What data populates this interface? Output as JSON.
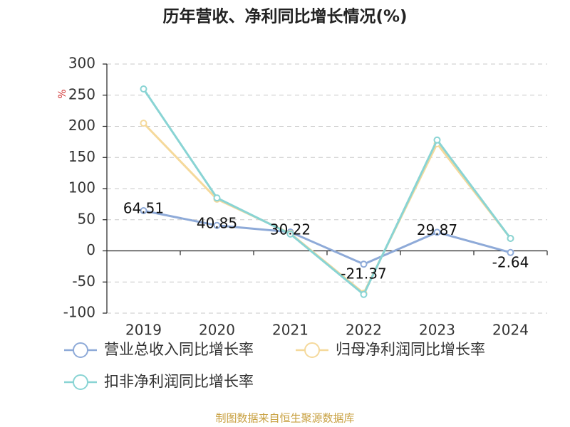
{
  "chart_data": {
    "type": "line",
    "title": "历年营收、净利同比增长情况(%)",
    "y_label": "%",
    "source": "制图数据来自恒生聚源数据库",
    "categories": [
      "2019",
      "2020",
      "2021",
      "2022",
      "2023",
      "2024"
    ],
    "series": [
      {
        "name": "营业总收入同比增长率",
        "color": "#8eaad8",
        "values": [
          64.51,
          40.85,
          30.22,
          -21.37,
          29.87,
          -2.64
        ],
        "show_labels": true
      },
      {
        "name": "归母净利润同比增长率",
        "color": "#f5d99b",
        "values": [
          205,
          83,
          28,
          -68,
          172,
          20
        ]
      },
      {
        "name": "扣非净利润同比增长率",
        "color": "#89d4d4",
        "values": [
          260,
          85,
          27,
          -70,
          178,
          20
        ]
      }
    ],
    "ylim": [
      -100,
      300
    ],
    "yticks": [
      -100,
      -50,
      0,
      50,
      100,
      150,
      200,
      250,
      300
    ],
    "grid": true
  }
}
